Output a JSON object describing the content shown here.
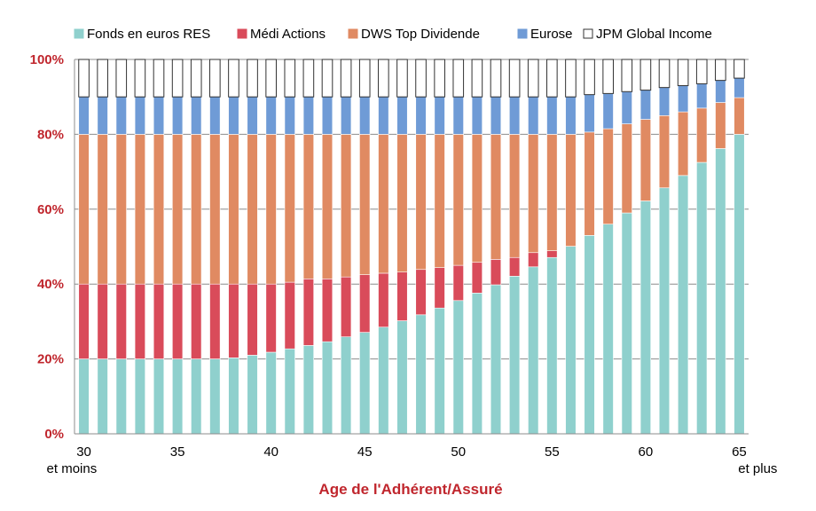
{
  "chart_data": {
    "type": "bar",
    "stacked": true,
    "title": "",
    "xlabel": "Age de l'Adhérent/Assuré",
    "ylabel": "",
    "ylim": [
      0,
      100
    ],
    "y_ticks": [
      "0%",
      "20%",
      "40%",
      "60%",
      "80%",
      "100%"
    ],
    "x_tick_labels": [
      {
        "age": 30,
        "label": "30",
        "sub": "et moins"
      },
      {
        "age": 35,
        "label": "35",
        "sub": ""
      },
      {
        "age": 40,
        "label": "40",
        "sub": ""
      },
      {
        "age": 45,
        "label": "45",
        "sub": ""
      },
      {
        "age": 50,
        "label": "50",
        "sub": ""
      },
      {
        "age": 55,
        "label": "55",
        "sub": ""
      },
      {
        "age": 60,
        "label": "60",
        "sub": ""
      },
      {
        "age": 65,
        "label": "65",
        "sub": "et plus"
      }
    ],
    "categories": [
      30,
      31,
      32,
      33,
      34,
      35,
      36,
      37,
      38,
      39,
      40,
      41,
      42,
      43,
      44,
      45,
      46,
      47,
      48,
      49,
      50,
      51,
      52,
      53,
      54,
      55,
      56,
      57,
      58,
      59,
      60,
      61,
      62,
      63,
      64,
      65
    ],
    "legend_position": "top",
    "grid": true,
    "series": [
      {
        "name": "Fonds en euros RES",
        "color": "#8fd0cd",
        "values": [
          20,
          20,
          20,
          20,
          20,
          20,
          20,
          20,
          20.3,
          21,
          21.8,
          22.7,
          23.6,
          24.6,
          25.9,
          27.1,
          28.5,
          30.2,
          31.8,
          33.6,
          35.6,
          37.6,
          39.8,
          42.1,
          44.6,
          47.1,
          50.1,
          53,
          56,
          59,
          62.2,
          65.7,
          69,
          72.5,
          76.2,
          80
        ]
      },
      {
        "name": "Médi Actions",
        "color": "#d94b5a",
        "values": [
          20,
          20,
          20,
          20,
          20,
          20,
          20,
          20,
          19.7,
          19,
          18.2,
          17.8,
          17.8,
          16.8,
          16,
          15.4,
          14.4,
          13,
          12.1,
          10.8,
          9.4,
          8.2,
          6.8,
          5,
          3.8,
          1.8,
          0,
          0,
          0,
          0,
          0,
          0,
          0,
          0,
          0,
          0
        ]
      },
      {
        "name": "DWS Top Dividende",
        "color": "#e08a62",
        "values": [
          40,
          40,
          40,
          40,
          40,
          40,
          40,
          40,
          40,
          40,
          40,
          39.5,
          38.6,
          38.6,
          38.1,
          37.5,
          37.1,
          36.8,
          36.1,
          35.6,
          35,
          34.2,
          33.4,
          32.9,
          31.6,
          31.1,
          29.9,
          27.6,
          25.5,
          23.8,
          21.8,
          19.3,
          17,
          14.5,
          12.3,
          9.8
        ]
      },
      {
        "name": "Eurose",
        "color": "#6f9bd6",
        "values": [
          10,
          10,
          10,
          10,
          10,
          10,
          10,
          10,
          10,
          10,
          10,
          10,
          10,
          10,
          10,
          10,
          10,
          10,
          10,
          10,
          10,
          10,
          10,
          10,
          10,
          10,
          10,
          10,
          9.4,
          8.6,
          7.8,
          7.5,
          7,
          6.5,
          5.9,
          5.2
        ]
      },
      {
        "name": "JPM Global Income",
        "color": "#ffffff",
        "values": [
          10,
          10,
          10,
          10,
          10,
          10,
          10,
          10,
          10,
          10,
          10,
          10,
          10,
          10,
          10,
          10,
          10,
          10,
          10,
          10,
          10,
          10,
          10,
          10,
          10,
          10,
          10,
          9.4,
          9.1,
          8.6,
          8.2,
          7.5,
          7,
          6.5,
          5.6,
          5
        ]
      }
    ]
  }
}
